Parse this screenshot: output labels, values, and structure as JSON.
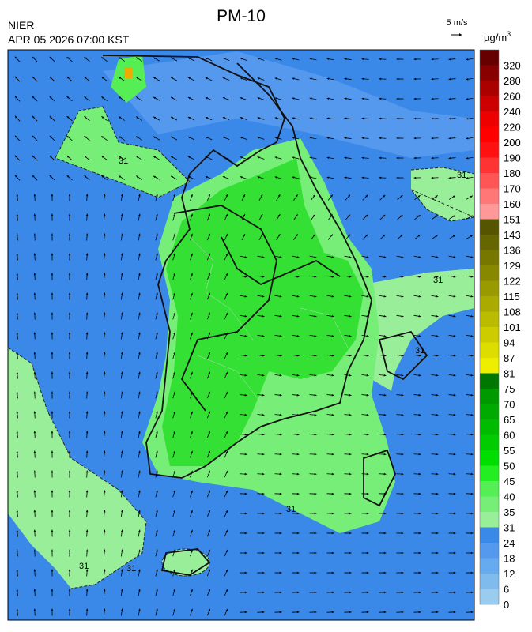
{
  "header": {
    "title": "PM-10",
    "source": "NIER",
    "datetime": "APR 05 2026 07:00 KST",
    "wind_scale": "5 m/s",
    "unit": "µg/m",
    "unit_power": "3"
  },
  "map": {
    "contour_label": "31"
  },
  "colorbar": {
    "levels": [
      0,
      6,
      12,
      18,
      24,
      31,
      35,
      40,
      45,
      50,
      55,
      60,
      65,
      70,
      75,
      81,
      87,
      94,
      101,
      108,
      115,
      122,
      129,
      136,
      143,
      151,
      160,
      170,
      180,
      190,
      200,
      220,
      240,
      260,
      280,
      320
    ],
    "colors": [
      "#99ccee",
      "#80bbee",
      "#66aaf0",
      "#5599ee",
      "#3a88e8",
      "#99ee99",
      "#77ee77",
      "#55ee55",
      "#22ee22",
      "#00dd00",
      "#00cc00",
      "#00bb00",
      "#00aa00",
      "#009900",
      "#007700",
      "#eeee00",
      "#dddd00",
      "#cccc00",
      "#bbbb00",
      "#aaaa00",
      "#999900",
      "#888800",
      "#777700",
      "#666600",
      "#555500",
      "#ff9999",
      "#ff7777",
      "#ff5555",
      "#ff3333",
      "#ff1111",
      "#ff0000",
      "#ee0000",
      "#cc0000",
      "#aa0000",
      "#880000",
      "#660000"
    ]
  }
}
